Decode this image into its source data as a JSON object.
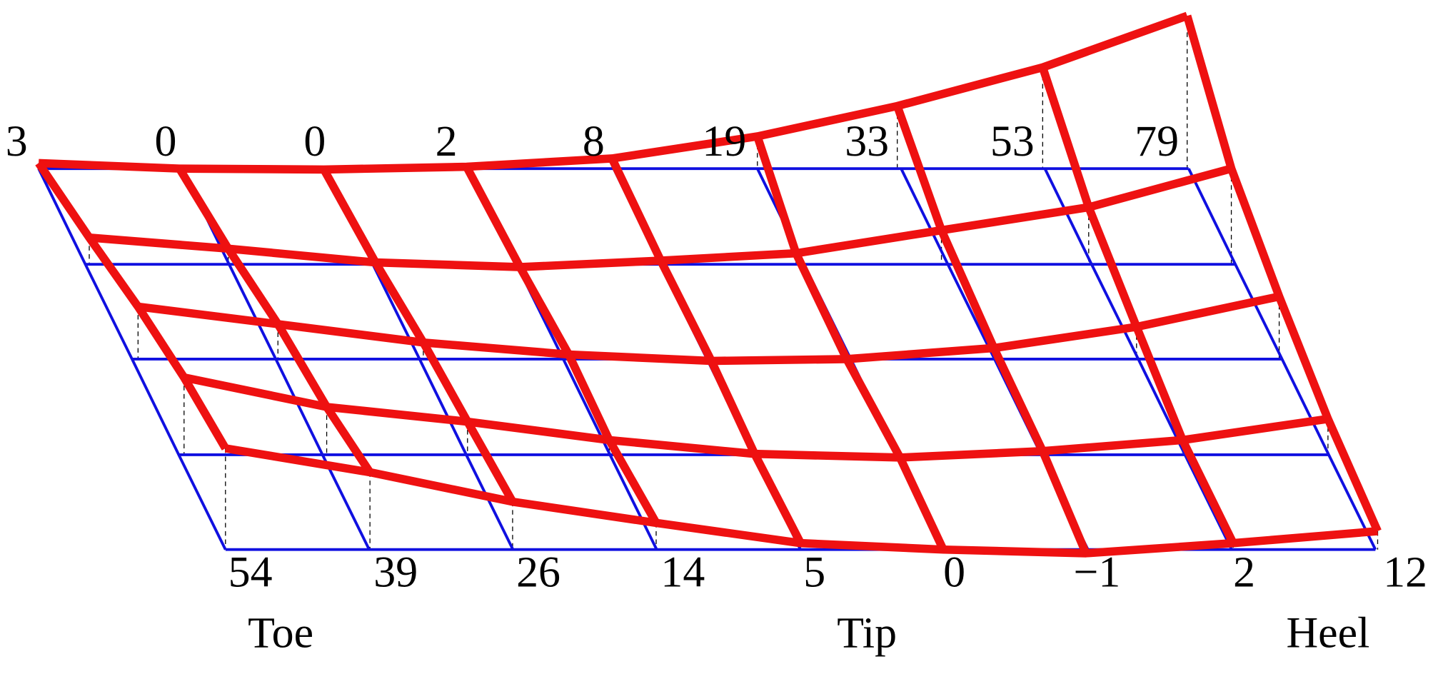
{
  "top_labels": [
    "3",
    "0",
    "0",
    "2",
    "8",
    "19",
    "33",
    "53",
    "79"
  ],
  "bottom_labels": [
    "54",
    "39",
    "26",
    "14",
    "5",
    "0",
    "−1",
    "2",
    "12"
  ],
  "region_labels": [
    "Toe",
    "Tip",
    "Heel"
  ]
}
